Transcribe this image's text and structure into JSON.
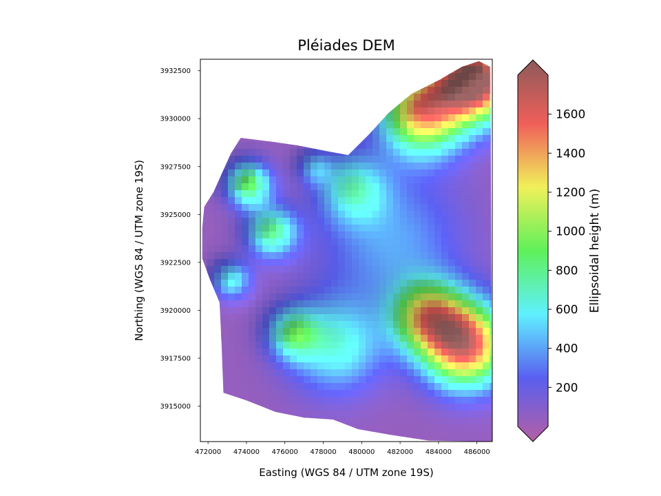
{
  "chart_data": {
    "type": "heatmap",
    "title": "Pléiades DEM",
    "xlabel": "Easting (WGS 84 / UTM zone 19S)",
    "ylabel": "Northing (WGS 84 / UTM zone 19S)",
    "xlim": [
      471600,
      486800
    ],
    "ylim": [
      3913150,
      3933100
    ],
    "xticks": [
      472000,
      474000,
      476000,
      478000,
      480000,
      482000,
      484000,
      486000
    ],
    "yticks": [
      3915000,
      3917500,
      3920000,
      3922500,
      3925000,
      3927500,
      3930000,
      3932500
    ],
    "grid": false,
    "colorbar": {
      "label": "Ellipsoidal height (m)",
      "vmin": 0,
      "vmax": 1800,
      "ticks": [
        200,
        400,
        600,
        800,
        1000,
        1200,
        1400,
        1600
      ],
      "extend": "both",
      "colormap": [
        "#b45fa4",
        "#5a5ff0",
        "#5ff0ff",
        "#5ff05a",
        "#f0f05a",
        "#f05f5a",
        "#8c5a5a"
      ]
    },
    "surface_features": {
      "valley_floor_m": 100,
      "glacier_center_m": 450,
      "ridge_peaks_m": [
        1800,
        1600,
        1500,
        800
      ]
    }
  }
}
